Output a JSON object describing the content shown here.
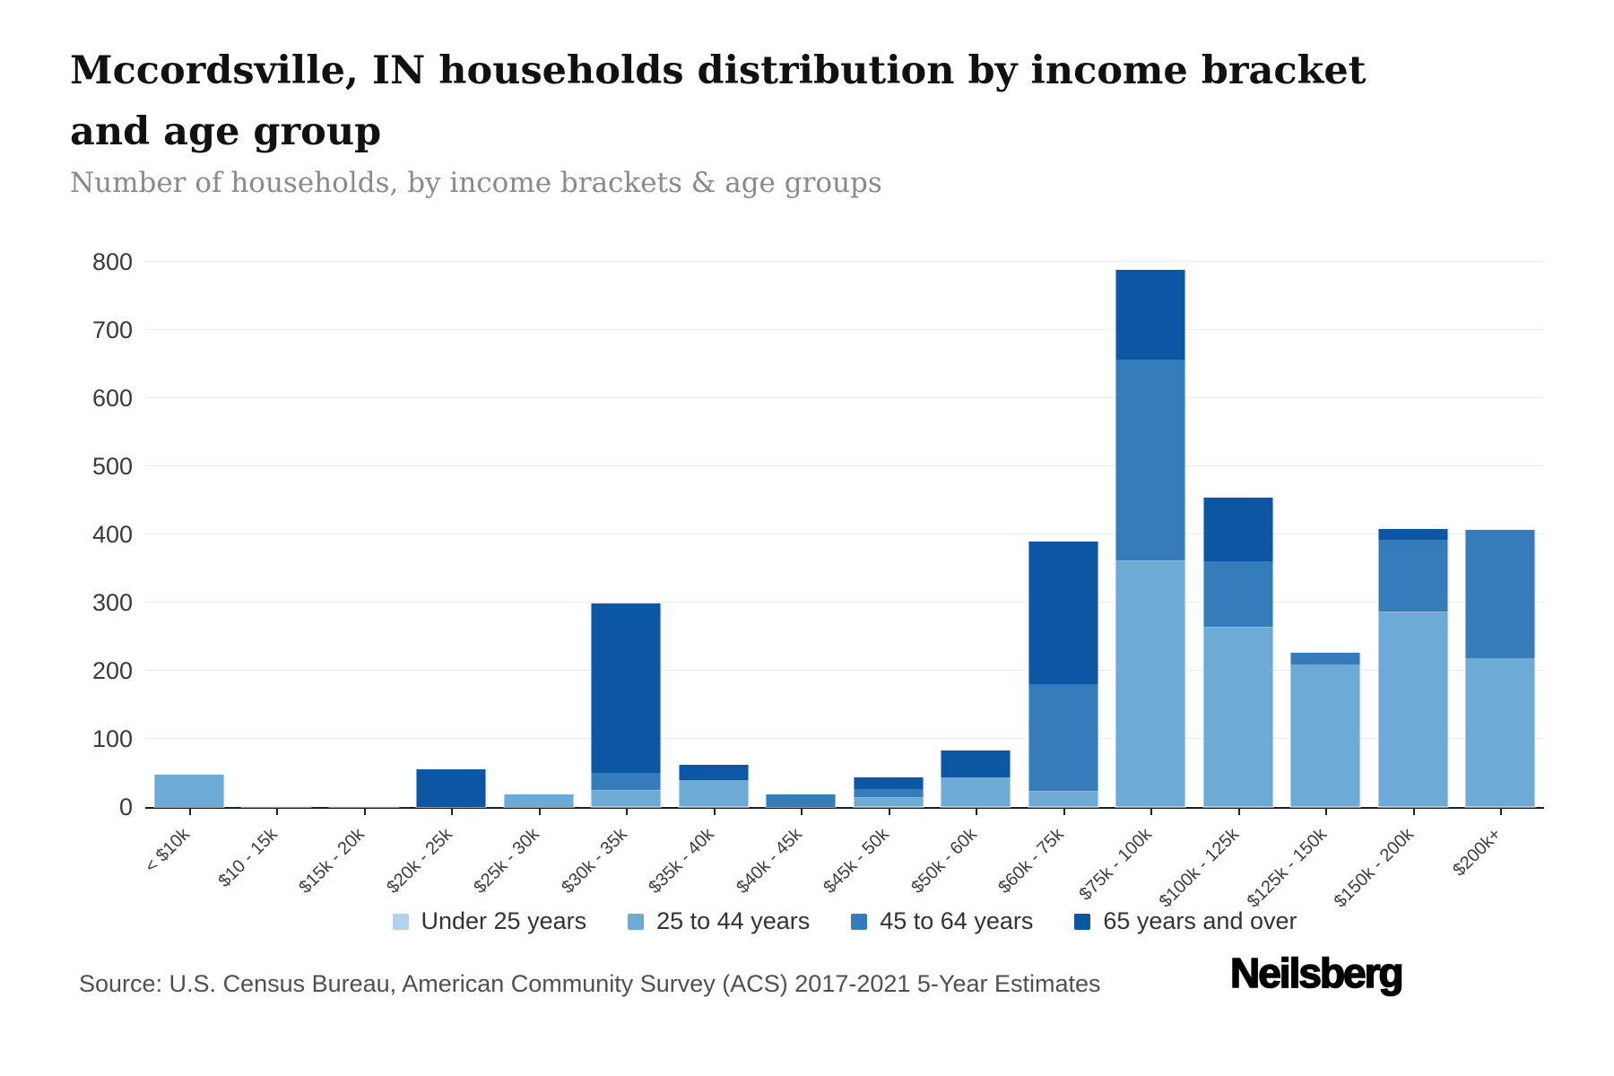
{
  "title": "Mccordsville, IN households distribution by income bracket and age group",
  "subtitle": "Number of households, by income brackets & age groups",
  "source": "Source: U.S. Census Bureau, American Community Survey (ACS) 2017-2021 5-Year Estimates",
  "brand": "Neilsberg",
  "chart_data": {
    "type": "bar",
    "stacked": true,
    "title": "Mccordsville, IN households distribution by income bracket and age group",
    "xlabel": "",
    "ylabel": "Number of households",
    "ylim": [
      0,
      800
    ],
    "ytick_interval": 100,
    "grid": true,
    "legend_position": "bottom",
    "categories": [
      "< $10k",
      "$10 - 15k",
      "$15k - 20k",
      "$20k - 25k",
      "$25k - 30k",
      "$30k - 35k",
      "$35k - 40k",
      "$40k - 45k",
      "$45k - 50k",
      "$50k - 60k",
      "$60k - 75k",
      "$75k - 100k",
      "$100k - 125k",
      "$125k - 150k",
      "$150k - 200k",
      "$200k+"
    ],
    "series": [
      {
        "name": "Under 25 years",
        "color": "#b3d3e8",
        "values": [
          0,
          0,
          0,
          0,
          0,
          0,
          0,
          0,
          0,
          0,
          0,
          0,
          0,
          0,
          0,
          0
        ]
      },
      {
        "name": "25 to 44 years",
        "color": "#6dabd4",
        "values": [
          48,
          0,
          0,
          0,
          19,
          24,
          39,
          0,
          13,
          43,
          22,
          360,
          263,
          209,
          285,
          219
        ]
      },
      {
        "name": "45 to 64 years",
        "color": "#347cba",
        "values": [
          0,
          0,
          0,
          0,
          0,
          26,
          0,
          19,
          13,
          0,
          158,
          296,
          97,
          18,
          107,
          187
        ]
      },
      {
        "name": "65 years and over",
        "color": "#0d56a3",
        "values": [
          0,
          0,
          0,
          55,
          0,
          249,
          23,
          0,
          17,
          40,
          210,
          132,
          94,
          0,
          16,
          0
        ]
      }
    ],
    "axis_color": "#1f1f1f",
    "gridline_color": "#ececec"
  }
}
